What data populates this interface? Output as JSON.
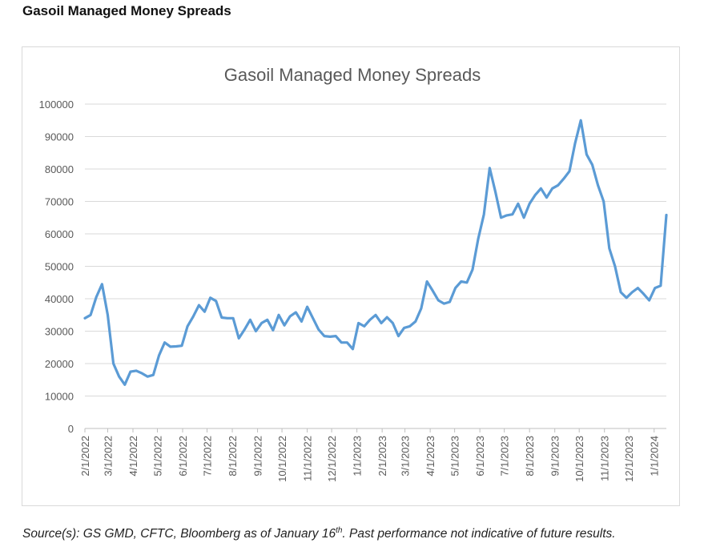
{
  "page": {
    "heading": "Gasoil Managed Money Spreads",
    "source_prefix": "Source(s): GS GMD, CFTC, Bloomberg as of January 16",
    "source_sup": "th",
    "source_suffix": ". Past performance not indicative of future results."
  },
  "chart_data": {
    "type": "line",
    "title": "Gasoil Managed Money Spreads",
    "xlabel": "",
    "ylabel": "",
    "ylim": [
      0,
      100000
    ],
    "yticks": [
      0,
      10000,
      20000,
      30000,
      40000,
      50000,
      60000,
      70000,
      80000,
      90000,
      100000
    ],
    "xticks": [
      "2/1/2022",
      "3/1/2022",
      "4/1/2022",
      "5/1/2022",
      "6/1/2022",
      "7/1/2022",
      "8/1/2022",
      "9/1/2022",
      "10/1/2022",
      "11/1/2022",
      "12/1/2022",
      "1/1/2023",
      "2/1/2023",
      "3/1/2023",
      "4/1/2023",
      "5/1/2023",
      "6/1/2023",
      "7/1/2023",
      "8/1/2023",
      "9/1/2023",
      "10/1/2023",
      "11/1/2023",
      "12/1/2023",
      "1/1/2024"
    ],
    "grid": "horizontal",
    "legend": "none",
    "line_color": "#5b9bd5",
    "series": [
      {
        "x": [
          "2022-02-01",
          "2022-02-08",
          "2022-02-15",
          "2022-02-22",
          "2022-03-01",
          "2022-03-08",
          "2022-03-15",
          "2022-03-22",
          "2022-03-29",
          "2022-04-05",
          "2022-04-12",
          "2022-04-19",
          "2022-04-26",
          "2022-05-03",
          "2022-05-10",
          "2022-05-17",
          "2022-05-24",
          "2022-05-31",
          "2022-06-07",
          "2022-06-14",
          "2022-06-21",
          "2022-06-28",
          "2022-07-05",
          "2022-07-12",
          "2022-07-19",
          "2022-07-26",
          "2022-08-02",
          "2022-08-09",
          "2022-08-16",
          "2022-08-23",
          "2022-08-30",
          "2022-09-06",
          "2022-09-13",
          "2022-09-20",
          "2022-09-27",
          "2022-10-04",
          "2022-10-11",
          "2022-10-18",
          "2022-10-25",
          "2022-11-01",
          "2022-11-08",
          "2022-11-15",
          "2022-11-22",
          "2022-11-29",
          "2022-12-06",
          "2022-12-13",
          "2022-12-20",
          "2022-12-27",
          "2023-01-03",
          "2023-01-10",
          "2023-01-17",
          "2023-01-24",
          "2023-01-31",
          "2023-02-07",
          "2023-02-14",
          "2023-02-21",
          "2023-02-28",
          "2023-03-07",
          "2023-03-14",
          "2023-03-21",
          "2023-03-28",
          "2023-04-04",
          "2023-04-11",
          "2023-04-18",
          "2023-04-25",
          "2023-05-02",
          "2023-05-09",
          "2023-05-16",
          "2023-05-23",
          "2023-05-30",
          "2023-06-06",
          "2023-06-13",
          "2023-06-20",
          "2023-06-27",
          "2023-07-04",
          "2023-07-11",
          "2023-07-18",
          "2023-07-25",
          "2023-08-01",
          "2023-08-08",
          "2023-08-15",
          "2023-08-22",
          "2023-08-29",
          "2023-09-05",
          "2023-09-12",
          "2023-09-19",
          "2023-09-26",
          "2023-10-03",
          "2023-10-10",
          "2023-10-17",
          "2023-10-24",
          "2023-10-31",
          "2023-11-07",
          "2023-11-14",
          "2023-11-21",
          "2023-11-28",
          "2023-12-05",
          "2023-12-12",
          "2023-12-19",
          "2023-12-26",
          "2024-01-02",
          "2024-01-09",
          "2024-01-16"
        ],
        "values": [
          34000,
          35000,
          40500,
          44500,
          35000,
          20000,
          16000,
          13500,
          17500,
          17800,
          17000,
          16000,
          16500,
          22500,
          26500,
          25200,
          25300,
          25500,
          31500,
          34500,
          38000,
          36000,
          40300,
          39300,
          34200,
          34000,
          34000,
          27800,
          30500,
          33500,
          30000,
          32500,
          33500,
          30300,
          35000,
          31800,
          34600,
          35800,
          33000,
          37500,
          34000,
          30500,
          28500,
          28300,
          28500,
          26500,
          26500,
          24500,
          32500,
          31500,
          33500,
          35000,
          32500,
          34300,
          32500,
          28500,
          31000,
          31500,
          33000,
          37000,
          45300,
          42500,
          39500,
          38500,
          39000,
          43300,
          45300,
          45000,
          49000,
          58500,
          66000,
          80300,
          73000,
          65000,
          65700,
          66000,
          69300,
          65000,
          69300,
          72000,
          74000,
          71200,
          74000,
          75000,
          77000,
          79300,
          88000,
          95000,
          84500,
          81300,
          75000,
          70000,
          55500,
          50000,
          42000,
          40300,
          42000,
          43300,
          41500,
          39500,
          43300,
          44000,
          65800
        ]
      }
    ]
  }
}
